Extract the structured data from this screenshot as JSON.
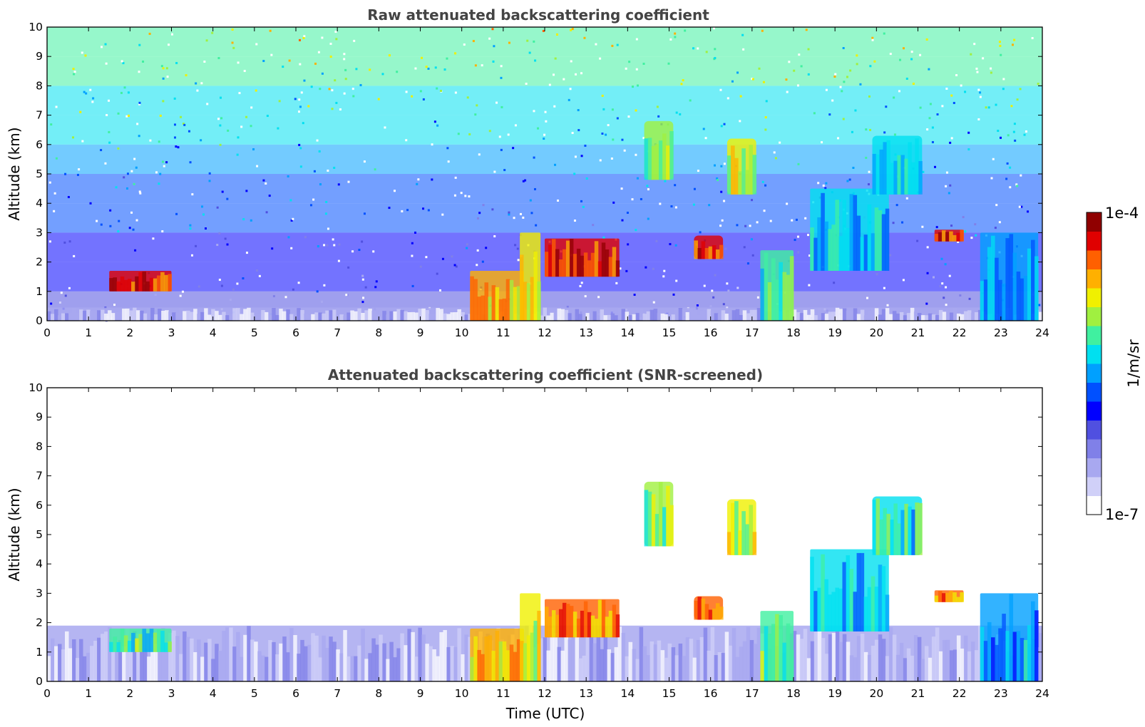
{
  "chart_data": [
    {
      "type": "heatmap",
      "title": "Raw attenuated backscattering coefficient",
      "xlabel": "",
      "ylabel": "Altitude (km)",
      "xlim": [
        0,
        24
      ],
      "ylim": [
        0,
        10
      ],
      "x_ticks": [
        "0",
        "1",
        "2",
        "3",
        "4",
        "5",
        "6",
        "7",
        "8",
        "9",
        "10",
        "11",
        "12",
        "13",
        "14",
        "15",
        "16",
        "17",
        "18",
        "19",
        "20",
        "21",
        "22",
        "23",
        "24"
      ],
      "y_ticks": [
        "0",
        "1",
        "2",
        "3",
        "4",
        "5",
        "6",
        "7",
        "8",
        "9",
        "10"
      ],
      "background_noise": true,
      "features": [
        {
          "kind": "boundary-layer",
          "x": [
            0,
            24
          ],
          "y": [
            0,
            0.45
          ],
          "level": 0.1
        },
        {
          "kind": "aerosol-layer",
          "x": [
            1.5,
            3.0
          ],
          "y": [
            1.0,
            1.7
          ],
          "level": 0.9
        },
        {
          "kind": "low-cloud",
          "x": [
            10.2,
            11.5
          ],
          "y": [
            0,
            1.7
          ],
          "level": 0.78
        },
        {
          "kind": "low-cloud",
          "x": [
            11.4,
            11.9
          ],
          "y": [
            0,
            3.0
          ],
          "level": 0.7
        },
        {
          "kind": "cloud-streak",
          "x": [
            12.0,
            13.8
          ],
          "y": [
            1.5,
            2.8
          ],
          "level": 0.92
        },
        {
          "kind": "cirrus",
          "x": [
            14.4,
            15.1
          ],
          "y": [
            4.8,
            6.8
          ],
          "level": 0.65
        },
        {
          "kind": "cirrus",
          "x": [
            15.6,
            16.3
          ],
          "y": [
            2.1,
            2.9
          ],
          "level": 0.9
        },
        {
          "kind": "cirrus",
          "x": [
            16.4,
            17.1
          ],
          "y": [
            4.3,
            6.2
          ],
          "level": 0.7
        },
        {
          "kind": "low-cloud",
          "x": [
            17.2,
            18.0
          ],
          "y": [
            0,
            2.4
          ],
          "level": 0.6
        },
        {
          "kind": "mixed-cloud",
          "x": [
            18.4,
            20.3
          ],
          "y": [
            1.7,
            4.5
          ],
          "level": 0.5
        },
        {
          "kind": "cirrus",
          "x": [
            19.9,
            21.1
          ],
          "y": [
            4.3,
            6.3
          ],
          "level": 0.55
        },
        {
          "kind": "cloud-streak",
          "x": [
            21.4,
            22.1
          ],
          "y": [
            2.7,
            3.1
          ],
          "level": 0.92
        },
        {
          "kind": "low-cloud",
          "x": [
            22.5,
            23.9
          ],
          "y": [
            0,
            3.0
          ],
          "level": 0.45
        }
      ]
    },
    {
      "type": "heatmap",
      "title": "Attenuated backscattering coefficient (SNR-screened)",
      "xlabel": "Time (UTC)",
      "ylabel": "Altitude (km)",
      "xlim": [
        0,
        24
      ],
      "ylim": [
        0,
        10
      ],
      "x_ticks": [
        "0",
        "1",
        "2",
        "3",
        "4",
        "5",
        "6",
        "7",
        "8",
        "9",
        "10",
        "11",
        "12",
        "13",
        "14",
        "15",
        "16",
        "17",
        "18",
        "19",
        "20",
        "21",
        "22",
        "23",
        "24"
      ],
      "y_ticks": [
        "0",
        "1",
        "2",
        "3",
        "4",
        "5",
        "6",
        "7",
        "8",
        "9",
        "10"
      ],
      "background_noise": false,
      "features": [
        {
          "kind": "boundary-layer",
          "x": [
            0,
            24
          ],
          "y": [
            0,
            1.9
          ],
          "level": 0.1
        },
        {
          "kind": "aerosol-layer",
          "x": [
            1.5,
            3.0
          ],
          "y": [
            1.0,
            1.8
          ],
          "level": 0.6
        },
        {
          "kind": "low-cloud",
          "x": [
            10.2,
            11.5
          ],
          "y": [
            0,
            1.8
          ],
          "level": 0.78
        },
        {
          "kind": "low-cloud",
          "x": [
            11.4,
            11.9
          ],
          "y": [
            0,
            3.0
          ],
          "level": 0.7
        },
        {
          "kind": "cloud-streak",
          "x": [
            12.0,
            13.8
          ],
          "y": [
            1.5,
            2.8
          ],
          "level": 0.85
        },
        {
          "kind": "cirrus",
          "x": [
            14.4,
            15.1
          ],
          "y": [
            4.6,
            6.8
          ],
          "level": 0.65
        },
        {
          "kind": "cirrus",
          "x": [
            15.6,
            16.3
          ],
          "y": [
            2.1,
            2.9
          ],
          "level": 0.85
        },
        {
          "kind": "cirrus",
          "x": [
            16.4,
            17.1
          ],
          "y": [
            4.3,
            6.2
          ],
          "level": 0.7
        },
        {
          "kind": "low-cloud",
          "x": [
            17.2,
            18.0
          ],
          "y": [
            0,
            2.4
          ],
          "level": 0.6
        },
        {
          "kind": "mixed-cloud",
          "x": [
            18.4,
            20.3
          ],
          "y": [
            1.7,
            4.5
          ],
          "level": 0.5
        },
        {
          "kind": "cirrus",
          "x": [
            19.9,
            21.1
          ],
          "y": [
            4.3,
            6.3
          ],
          "level": 0.55
        },
        {
          "kind": "cloud-streak",
          "x": [
            21.4,
            22.1
          ],
          "y": [
            2.7,
            3.1
          ],
          "level": 0.85
        },
        {
          "kind": "low-cloud",
          "x": [
            22.5,
            23.9
          ],
          "y": [
            0,
            3.0
          ],
          "level": 0.45
        }
      ]
    }
  ],
  "colorbar": {
    "label": "1/m/sr",
    "max_label": "1e-4",
    "min_label": "1e-7",
    "colors": [
      "#ffffff",
      "#d0d0f8",
      "#a8a8f0",
      "#8080e8",
      "#5050e0",
      "#0000ff",
      "#0050ff",
      "#00a0ff",
      "#00e0f0",
      "#40f0a0",
      "#a0f040",
      "#f0f000",
      "#ffb000",
      "#ff6000",
      "#e00000",
      "#900000"
    ]
  }
}
